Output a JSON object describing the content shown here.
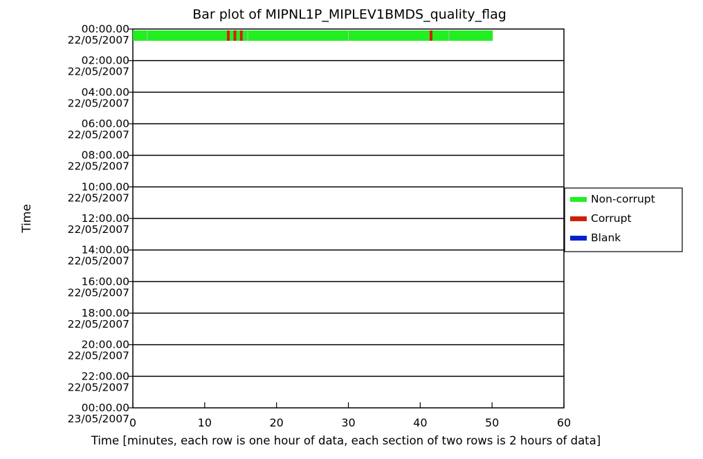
{
  "chart_data": {
    "type": "bar",
    "title": "Bar plot of MIPNL1P_MIPLEV1BMDS_quality_flag",
    "xlabel": "Time [minutes, each row is one hour of data, each section of two rows is 2 hours of data]",
    "ylabel": "Time",
    "xlim": [
      0,
      60
    ],
    "x_ticks": [
      "0",
      "10",
      "20",
      "30",
      "40",
      "50",
      "60"
    ],
    "y_ticks": [
      {
        "time": "00:00.00",
        "date": "22/05/2007"
      },
      {
        "time": "02:00.00",
        "date": "22/05/2007"
      },
      {
        "time": "04:00.00",
        "date": "22/05/2007"
      },
      {
        "time": "06:00.00",
        "date": "22/05/2007"
      },
      {
        "time": "08:00.00",
        "date": "22/05/2007"
      },
      {
        "time": "10:00.00",
        "date": "22/05/2007"
      },
      {
        "time": "12:00.00",
        "date": "22/05/2007"
      },
      {
        "time": "14:00.00",
        "date": "22/05/2007"
      },
      {
        "time": "16:00.00",
        "date": "22/05/2007"
      },
      {
        "time": "18:00.00",
        "date": "22/05/2007"
      },
      {
        "time": "20:00.00",
        "date": "22/05/2007"
      },
      {
        "time": "22:00.00",
        "date": "22/05/2007"
      },
      {
        "time": "00:00.00",
        "date": "23/05/2007"
      }
    ],
    "legend": {
      "placement": "right",
      "entries": [
        {
          "label": "Non-corrupt",
          "color": "#22ee22"
        },
        {
          "label": "Corrupt",
          "color": "#cc2200"
        },
        {
          "label": "Blank",
          "color": "#0022cc"
        }
      ]
    },
    "series": [
      {
        "row": 0,
        "segments": [
          {
            "start": 0,
            "end": 13.1,
            "status": "Non-corrupt"
          },
          {
            "start": 13.1,
            "end": 13.5,
            "status": "Corrupt"
          },
          {
            "start": 13.5,
            "end": 14.0,
            "status": "Non-corrupt"
          },
          {
            "start": 14.0,
            "end": 14.4,
            "status": "Corrupt"
          },
          {
            "start": 14.4,
            "end": 14.9,
            "status": "Non-corrupt"
          },
          {
            "start": 14.9,
            "end": 15.3,
            "status": "Corrupt"
          },
          {
            "start": 15.3,
            "end": 41.3,
            "status": "Non-corrupt"
          },
          {
            "start": 41.3,
            "end": 41.7,
            "status": "Corrupt"
          },
          {
            "start": 41.7,
            "end": 50.1,
            "status": "Non-corrupt"
          }
        ]
      }
    ]
  }
}
